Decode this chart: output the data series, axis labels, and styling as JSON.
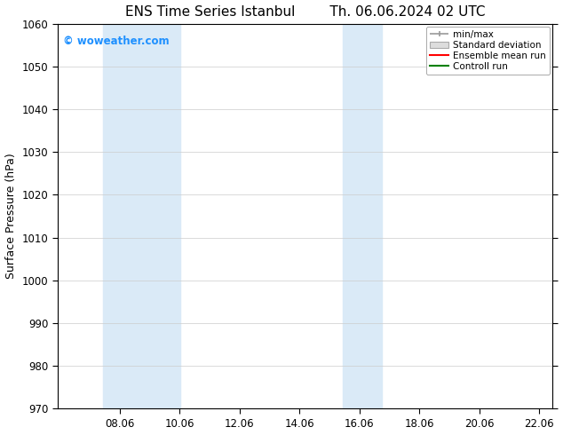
{
  "title_left": "ENS Time Series Istanbul",
  "title_right": "Th. 06.06.2024 02 UTC",
  "ylabel": "Surface Pressure (hPa)",
  "ylim": [
    970,
    1060
  ],
  "yticks": [
    970,
    980,
    990,
    1000,
    1010,
    1020,
    1030,
    1040,
    1050,
    1060
  ],
  "xlim_num": [
    6.0,
    22.5
  ],
  "xtick_positions": [
    8.06,
    10.06,
    12.06,
    14.06,
    16.06,
    18.06,
    20.06,
    22.06
  ],
  "xtick_labels": [
    "08.06",
    "10.06",
    "12.06",
    "14.06",
    "16.06",
    "18.06",
    "20.06",
    "22.06"
  ],
  "shaded_bands": [
    {
      "xmin": 7.5,
      "xmax": 10.1
    },
    {
      "xmin": 15.5,
      "xmax": 16.8
    }
  ],
  "shaded_color": "#daeaf7",
  "watermark": "© woweather.com",
  "watermark_color": "#1E90FF",
  "legend_labels": [
    "min/max",
    "Standard deviation",
    "Ensemble mean run",
    "Controll run"
  ],
  "legend_colors": [
    "#aaaaaa",
    "#cccccc",
    "#ff0000",
    "#008000"
  ],
  "background_color": "#ffffff",
  "plot_bg_color": "#ffffff",
  "title_fontsize": 11,
  "axis_label_fontsize": 9,
  "tick_fontsize": 8.5,
  "legend_fontsize": 7.5
}
